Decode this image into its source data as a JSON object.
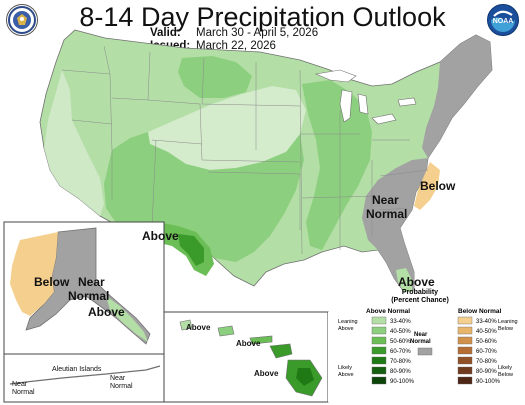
{
  "header": {
    "title": "8-14 Day Precipitation Outlook",
    "valid_label": "Valid:",
    "valid_value": "March 30 - April 5, 2026",
    "issued_label": "Issued:",
    "issued_value": "March 22, 2026",
    "left_logo": "dept-of-commerce-seal",
    "right_logo": "noaa-logo",
    "right_logo_text": "NOAA"
  },
  "map_labels": {
    "conus_above_sw": "Above",
    "conus_near_normal_se": "Near Normal",
    "conus_below_nc": "Below",
    "conus_above_fl": "Above",
    "alaska_below": "Below",
    "alaska_near_normal": "Near Normal",
    "alaska_above_se": "Above",
    "aleutian_label": "Aleutian Islands",
    "aleutian_near_normal_left": "Near Normal",
    "aleutian_near_normal_right": "Near Normal",
    "hawaii_above_1": "Above",
    "hawaii_above_2": "Above",
    "hawaii_above_3": "Above"
  },
  "legend": {
    "title": "Probability (Percent Chance)",
    "above_header": "Above Normal",
    "below_header": "Below Normal",
    "leaning_above": "Leaning Above",
    "likely_above": "Likely Above",
    "leaning_below": "Leaning Below",
    "likely_below": "Likely Below",
    "near_normal": "Near Normal",
    "bins": [
      "33-40%",
      "40-50%",
      "50-60%",
      "60-70%",
      "70-80%",
      "80-90%",
      "90-100%"
    ],
    "above_colors": [
      "#b3dea6",
      "#8ccf7e",
      "#6bbd55",
      "#3a9a2a",
      "#1f7a16",
      "#155f10",
      "#0d4409"
    ],
    "below_colors": [
      "#f5cf8e",
      "#e8b56b",
      "#d2914a",
      "#b56d34",
      "#925026",
      "#703a1d",
      "#4e2614"
    ],
    "near_normal_color": "#a2a2a2"
  }
}
